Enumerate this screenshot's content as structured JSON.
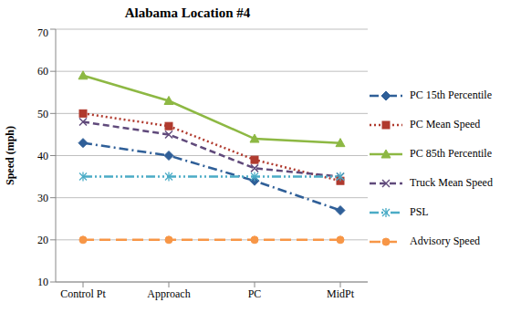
{
  "chart_data": {
    "type": "line",
    "title": "Alabama Location #4",
    "y_label": "Speed (mph)",
    "categories": [
      "Control Pt",
      "Approach",
      "PC",
      "MidPt"
    ],
    "series": [
      {
        "name": "PC 15th Percentile",
        "color": "#2f5f98",
        "marker": "diamond",
        "line_style": "dash_dot",
        "values": [
          43,
          40,
          34,
          27
        ]
      },
      {
        "name": "PC Mean Speed",
        "color": "#b03a2e",
        "marker": "square",
        "line_style": "dotted",
        "values": [
          50,
          47,
          39,
          34
        ]
      },
      {
        "name": "PC 85th Percentile",
        "color": "#8db843",
        "marker": "triangle",
        "line_style": "solid",
        "values": [
          59,
          53,
          44,
          43
        ]
      },
      {
        "name": "Truck Mean Speed",
        "color": "#604a7b",
        "marker": "x",
        "line_style": "dashed",
        "values": [
          48,
          45,
          37,
          35
        ]
      },
      {
        "name": "PSL",
        "color": "#4bacc6",
        "marker": "star",
        "line_style": "dash_dot_dot",
        "values": [
          35,
          35,
          35,
          35
        ]
      },
      {
        "name": "Advisory Speed",
        "color": "#f79646",
        "marker": "circle",
        "line_style": "long_dash",
        "values": [
          20,
          20,
          20,
          20
        ]
      }
    ],
    "ylim": [
      10,
      70
    ],
    "yticks": [
      10,
      20,
      30,
      40,
      50,
      60,
      70
    ],
    "grid": true,
    "legend": "right"
  }
}
